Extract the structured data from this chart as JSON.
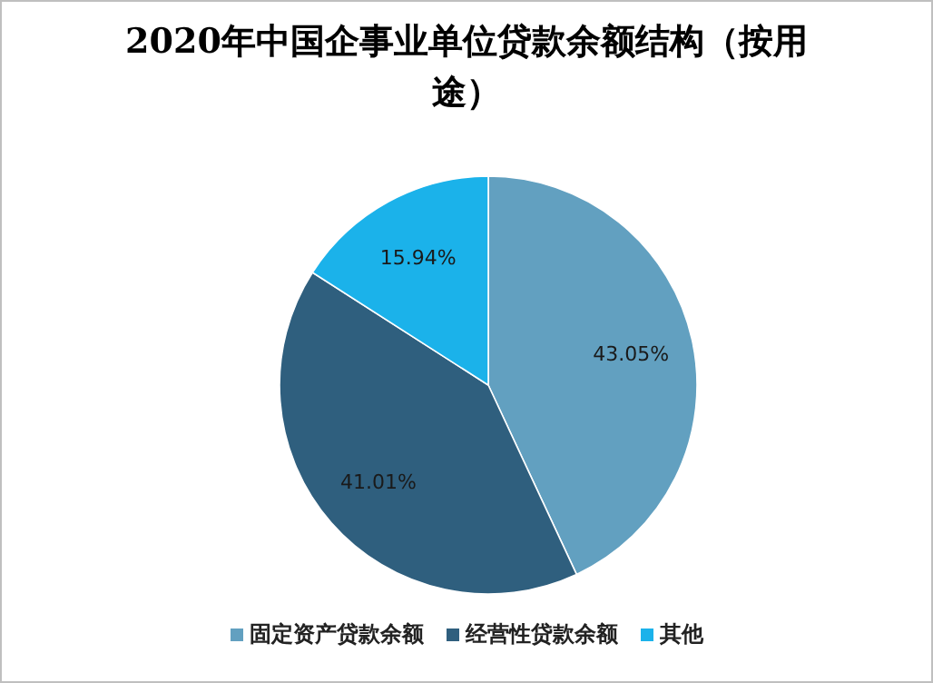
{
  "chart_data": {
    "type": "pie",
    "title": "2020年中国企事业单位贷款余额结构（按用途）",
    "categories": [
      "固定资产贷款余额",
      "经营性贷款余额",
      "其他"
    ],
    "values": [
      43.05,
      41.01,
      15.94
    ],
    "colors": [
      "#62a0c0",
      "#2f5f7e",
      "#1bb2ea"
    ],
    "value_labels": [
      "43.05%",
      "41.01%",
      "15.94%"
    ],
    "legend": "bottom"
  }
}
